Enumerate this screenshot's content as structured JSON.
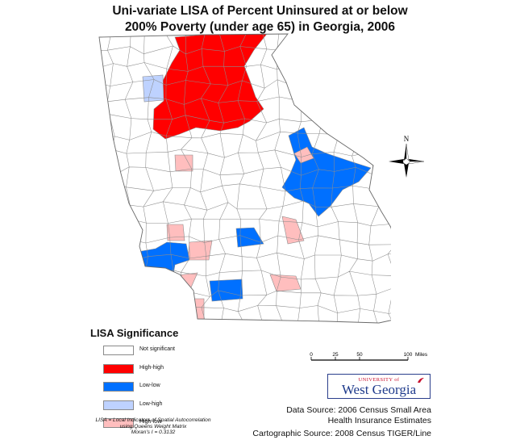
{
  "title": {
    "line1": "Uni-variate LISA of Percent Uninsured at or below",
    "line2": "200% Poverty (under age 65) in Georgia, 2006"
  },
  "colors": {
    "not_significant": "#ffffff",
    "high_high": "#ff0000",
    "low_low": "#0070ff",
    "low_high": "#bed2ff",
    "high_low": "#ffbebe",
    "county_border": "#8c8c8c"
  },
  "legend": {
    "title": "LISA Significance",
    "items": [
      {
        "label": "Not significant",
        "category": "not_significant"
      },
      {
        "label": "High-high",
        "category": "high_high"
      },
      {
        "label": "Low-low",
        "category": "low_low"
      },
      {
        "label": "Low-high",
        "category": "low_high"
      },
      {
        "label": "High-low",
        "category": "high_low"
      }
    ]
  },
  "notes": {
    "line1": "LISA = Local Indicators of Spatial Autocorrelation",
    "line2": "using Queens Weight Matrix",
    "line3": "Moran's I = 0.3132"
  },
  "north_arrow": {
    "label": "N"
  },
  "scale_bar": {
    "ticks": [
      "0",
      "25",
      "50",
      "100"
    ],
    "unit": "Miles"
  },
  "logo": {
    "top": "UNIVERSITY of",
    "main": "West Georgia"
  },
  "sources": {
    "data_line1": "Data Source: 2006 Census Small Area",
    "data_line2": "Health Insurance Estimates",
    "carto": "Cartographic Source: 2008 Census TIGER/Line"
  }
}
